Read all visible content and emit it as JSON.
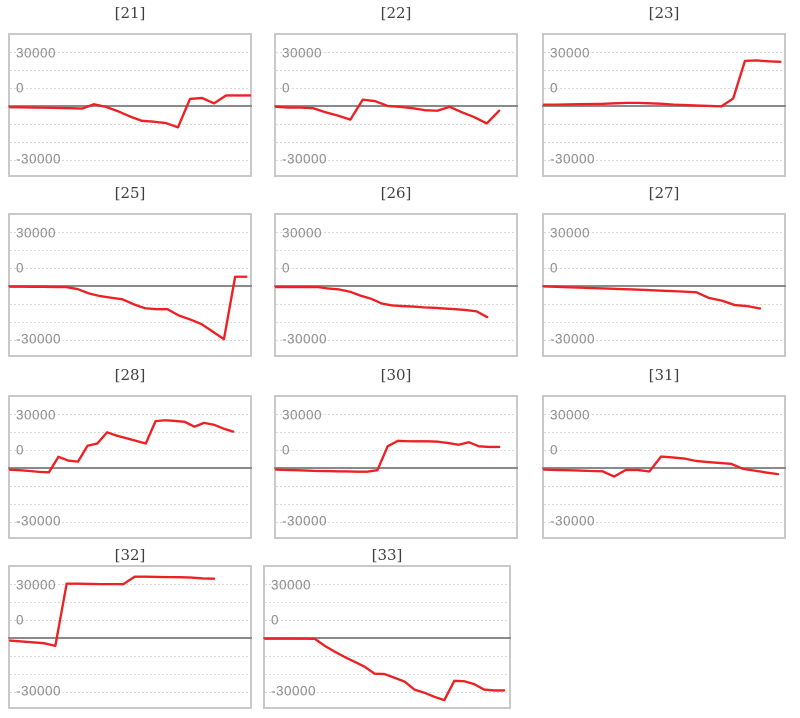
{
  "chart_data": {
    "type": "line",
    "series_color": "#ed2024",
    "axis_color": "#8a8a8a",
    "gridline_color": "#d9d9d9",
    "y_tick_labels": [
      "30000",
      "0",
      "-30000"
    ],
    "y_gridline_step": 10000,
    "ylim": [
      -40000,
      40500
    ],
    "x_tick_labels": [],
    "panels": [
      {
        "title": "[21]",
        "span": 1.0,
        "values": [
          -700,
          -800,
          -900,
          -1000,
          -1100,
          -1300,
          -1500,
          1000,
          -500,
          -3000,
          -6000,
          -8500,
          -9000,
          -9800,
          -12200,
          4000,
          4600,
          1500,
          6000,
          6000,
          6000
        ]
      },
      {
        "title": "[22]",
        "span": 0.93,
        "values": [
          -500,
          -900,
          -900,
          -1300,
          -3600,
          -5500,
          -7800,
          3600,
          2700,
          0,
          -500,
          -1300,
          -2400,
          -2700,
          -500,
          -3600,
          -6400,
          -10000,
          -2700
        ]
      },
      {
        "title": "[23]",
        "span": 0.985,
        "values": [
          800,
          800,
          900,
          1000,
          1100,
          1200,
          1500,
          1800,
          1800,
          1500,
          1200,
          800,
          500,
          200,
          0,
          -200,
          4200,
          25800,
          26000,
          25500,
          25200
        ]
      },
      {
        "title": "[25]",
        "span": 0.985,
        "values": [
          -400,
          -400,
          -500,
          -500,
          -600,
          -600,
          -1800,
          -4200,
          -5800,
          -6700,
          -7600,
          -10500,
          -12700,
          -13300,
          -13300,
          -16900,
          -19100,
          -21800,
          -26000,
          -30400,
          5300,
          5300
        ]
      },
      {
        "title": "[26]",
        "span": 0.88,
        "values": [
          -600,
          -600,
          -600,
          -600,
          -600,
          -1500,
          -2000,
          -3300,
          -5500,
          -7300,
          -10000,
          -11100,
          -11500,
          -11800,
          -12200,
          -12500,
          -12900,
          -13300,
          -13800,
          -14500,
          -17800
        ]
      },
      {
        "title": "[27]",
        "span": 0.9,
        "values": [
          -300,
          -500,
          -800,
          -1000,
          -1300,
          -1500,
          -1800,
          -2000,
          -2300,
          -2600,
          -2900,
          -3200,
          -3600,
          -6900,
          -8400,
          -10900,
          -11500,
          -12900
        ]
      },
      {
        "title": "[28]",
        "span": 0.93,
        "values": [
          -1000,
          -1300,
          -1700,
          -2200,
          -2500,
          6400,
          4200,
          3600,
          12700,
          14000,
          20400,
          18500,
          17000,
          15500,
          14000,
          26800,
          27300,
          26900,
          26400,
          23600,
          25800,
          24700,
          22500,
          20800
        ]
      },
      {
        "title": "[30]",
        "span": 0.93,
        "values": [
          -900,
          -1100,
          -1300,
          -1500,
          -1700,
          -1800,
          -1900,
          -2000,
          -2100,
          -2100,
          -1300,
          12400,
          15500,
          15300,
          15200,
          15200,
          15000,
          14200,
          13300,
          14700,
          12400,
          12000,
          12000
        ]
      },
      {
        "title": "[31]",
        "span": 0.975,
        "values": [
          -900,
          -1100,
          -1300,
          -1500,
          -1700,
          -1900,
          -4900,
          -1100,
          -1100,
          -2000,
          6500,
          6000,
          5400,
          4000,
          3400,
          2900,
          2400,
          -500,
          -1500,
          -2600,
          -3500
        ]
      },
      {
        "title": "[32]",
        "span": 0.85,
        "values": [
          -1500,
          -2000,
          -2500,
          -3000,
          -4500,
          31000,
          31000,
          30900,
          30800,
          30800,
          30700,
          35000,
          35000,
          34900,
          34800,
          34700,
          34500,
          34000,
          33900
        ]
      },
      {
        "title": "[33]",
        "span": 0.98,
        "values": [
          -400,
          -400,
          -400,
          -400,
          -450,
          -500,
          -4500,
          -7800,
          -10900,
          -13600,
          -16400,
          -20400,
          -20600,
          -22700,
          -24900,
          -29500,
          -31300,
          -33600,
          -35500,
          -24500,
          -24700,
          -26400,
          -29500,
          -30000,
          -30000
        ]
      }
    ]
  }
}
